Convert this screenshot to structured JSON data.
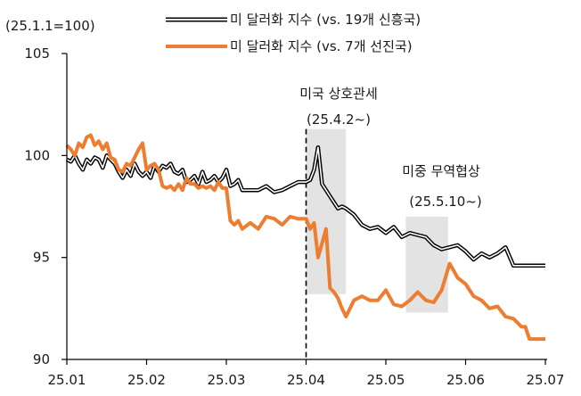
{
  "chart_data": {
    "type": "line",
    "unit_label": "(25.1.1=100)",
    "x_ticks": [
      "25.01",
      "25.02",
      "25.03",
      "25.04",
      "25.05",
      "25.06",
      "25.07"
    ],
    "y_ticks": [
      "90",
      "95",
      "100",
      "105"
    ],
    "ylim": [
      90,
      105
    ],
    "xlim": [
      0,
      6
    ],
    "grid": false,
    "legend_position": "top",
    "series": [
      {
        "name": "미 달러화 지수 (vs. 19개 신흥국)",
        "style": "double-line",
        "color": "#000000",
        "x": [
          0,
          0.05,
          0.1,
          0.15,
          0.2,
          0.25,
          0.3,
          0.35,
          0.4,
          0.45,
          0.5,
          0.55,
          0.6,
          0.65,
          0.7,
          0.75,
          0.8,
          0.85,
          0.9,
          0.95,
          1.0,
          1.05,
          1.1,
          1.15,
          1.2,
          1.25,
          1.3,
          1.35,
          1.4,
          1.45,
          1.5,
          1.55,
          1.6,
          1.65,
          1.7,
          1.75,
          1.8,
          1.85,
          1.9,
          1.95,
          2.0,
          2.05,
          2.1,
          2.15,
          2.2,
          2.3,
          2.4,
          2.5,
          2.6,
          2.7,
          2.8,
          2.9,
          3.0,
          3.05,
          3.1,
          3.15,
          3.2,
          3.25,
          3.3,
          3.35,
          3.4,
          3.45,
          3.5,
          3.6,
          3.7,
          3.8,
          3.9,
          4.0,
          4.1,
          4.2,
          4.3,
          4.4,
          4.5,
          4.6,
          4.7,
          4.8,
          4.9,
          5.0,
          5.1,
          5.2,
          5.3,
          5.4,
          5.5,
          5.6,
          5.7,
          5.75,
          5.8,
          5.9,
          6.0
        ],
        "values": [
          99.8,
          99.7,
          100.0,
          99.6,
          99.3,
          99.8,
          99.6,
          99.9,
          99.8,
          99.4,
          100.0,
          99.8,
          99.6,
          99.2,
          98.9,
          99.3,
          99.0,
          99.6,
          99.2,
          99.0,
          99.2,
          98.9,
          99.5,
          99.2,
          99.5,
          99.4,
          99.6,
          99.2,
          99.1,
          99.3,
          98.7,
          98.8,
          99.0,
          98.6,
          99.2,
          98.7,
          98.8,
          99.0,
          98.7,
          98.9,
          99.3,
          98.5,
          98.6,
          98.8,
          98.3,
          98.3,
          98.3,
          98.5,
          98.2,
          98.3,
          98.5,
          98.7,
          98.7,
          98.8,
          99.3,
          100.4,
          98.6,
          98.3,
          98.0,
          97.7,
          97.4,
          97.5,
          97.4,
          97.1,
          96.6,
          96.4,
          96.5,
          96.2,
          96.5,
          96.0,
          96.2,
          96.1,
          96.0,
          95.6,
          95.4,
          95.5,
          95.6,
          95.3,
          94.9,
          95.2,
          95.0,
          95.2,
          95.5,
          94.6,
          94.6,
          94.6,
          94.6,
          94.6,
          94.6
        ]
      },
      {
        "name": "미 달러화 지수 (vs. 7개 선진국)",
        "style": "solid",
        "color": "#ed7d31",
        "x": [
          0,
          0.05,
          0.1,
          0.15,
          0.2,
          0.25,
          0.3,
          0.35,
          0.4,
          0.45,
          0.5,
          0.55,
          0.6,
          0.65,
          0.7,
          0.75,
          0.8,
          0.85,
          0.9,
          0.95,
          1.0,
          1.05,
          1.1,
          1.15,
          1.2,
          1.25,
          1.3,
          1.35,
          1.4,
          1.45,
          1.5,
          1.55,
          1.6,
          1.65,
          1.7,
          1.75,
          1.8,
          1.85,
          1.9,
          1.95,
          2.0,
          2.05,
          2.1,
          2.15,
          2.2,
          2.3,
          2.4,
          2.5,
          2.6,
          2.7,
          2.8,
          2.9,
          3.0,
          3.05,
          3.1,
          3.15,
          3.2,
          3.25,
          3.3,
          3.35,
          3.4,
          3.45,
          3.5,
          3.6,
          3.7,
          3.8,
          3.9,
          4.0,
          4.1,
          4.2,
          4.3,
          4.4,
          4.5,
          4.6,
          4.7,
          4.8,
          4.9,
          5.0,
          5.1,
          5.2,
          5.3,
          5.4,
          5.5,
          5.6,
          5.7,
          5.75,
          5.8,
          5.9,
          6.0
        ],
        "values": [
          100.5,
          100.3,
          100.0,
          100.6,
          100.4,
          100.9,
          101.0,
          100.5,
          100.7,
          100.3,
          100.6,
          99.9,
          99.8,
          99.3,
          99.2,
          99.6,
          99.5,
          99.9,
          100.3,
          100.6,
          99.3,
          99.5,
          99.6,
          99.3,
          98.5,
          98.4,
          98.5,
          98.3,
          98.6,
          98.3,
          98.9,
          98.6,
          98.6,
          98.4,
          98.5,
          98.4,
          98.5,
          98.3,
          98.7,
          98.4,
          98.4,
          96.8,
          96.6,
          96.8,
          96.4,
          96.7,
          96.4,
          97.0,
          96.9,
          96.6,
          97.0,
          96.9,
          96.9,
          96.4,
          96.7,
          95.0,
          95.7,
          96.4,
          93.5,
          93.3,
          93.0,
          92.5,
          92.1,
          92.9,
          93.1,
          92.9,
          92.9,
          93.4,
          92.7,
          92.6,
          92.9,
          93.3,
          92.9,
          92.8,
          93.4,
          94.7,
          94.0,
          93.7,
          93.1,
          92.9,
          92.5,
          92.6,
          92.1,
          92.0,
          91.6,
          91.6,
          91.0,
          91.0,
          91.0
        ]
      }
    ],
    "annotations": [
      {
        "label_1": "미국 상호관세",
        "label_2": "(25.4.2~)",
        "shade_x": [
          3.0,
          3.5
        ],
        "shade_y": [
          93.2,
          101.3
        ],
        "vline_x": 3.0
      },
      {
        "label_1": "미중 무역협상",
        "label_2": "(25.5.10~)",
        "shade_x": [
          4.25,
          4.78
        ],
        "shade_y": [
          92.3,
          97.0
        ]
      }
    ]
  }
}
